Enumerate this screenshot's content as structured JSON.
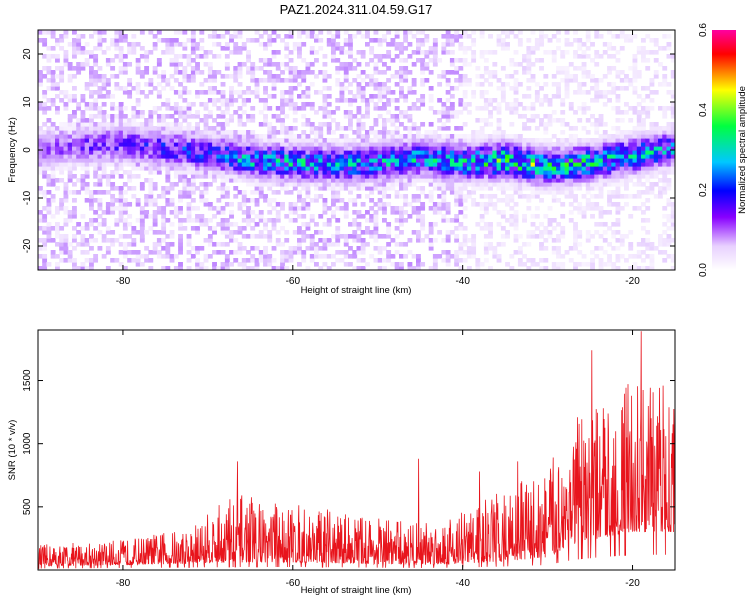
{
  "page_title": "PAZ1.2024.311.04.59.G17",
  "chart_data": [
    {
      "type": "heatmap",
      "xlabel": "Height of straight line (km)",
      "ylabel": "Frequency (Hz)",
      "xlim": [
        -90,
        -15
      ],
      "ylim": [
        -25,
        25
      ],
      "x_ticks": [
        "-80",
        "-60",
        "-40",
        "-20"
      ],
      "y_ticks": [
        "20",
        "10",
        "0",
        "-10",
        "-20"
      ],
      "colorbar": {
        "label": "Normalized spectral amplitude",
        "range": [
          0,
          0.6
        ],
        "ticks": [
          "0.0",
          "0.2",
          "0.4",
          "0.6"
        ],
        "colors": [
          "#ffffff",
          "#8800ff",
          "#0000ff",
          "#00ccff",
          "#00ff00",
          "#ffff00",
          "#ff0000",
          "#ff00aa"
        ]
      },
      "ridge": [
        {
          "x": -90,
          "f": 0.0,
          "amp": 0.12
        },
        {
          "x": -85,
          "f": 1.0,
          "amp": 0.15
        },
        {
          "x": -80,
          "f": 1.5,
          "amp": 0.17
        },
        {
          "x": -75,
          "f": 0.5,
          "amp": 0.2
        },
        {
          "x": -70,
          "f": -0.5,
          "amp": 0.22
        },
        {
          "x": -65,
          "f": -2.0,
          "amp": 0.27
        },
        {
          "x": -60,
          "f": -2.5,
          "amp": 0.28
        },
        {
          "x": -55,
          "f": -3.0,
          "amp": 0.26
        },
        {
          "x": -50,
          "f": -2.5,
          "amp": 0.27
        },
        {
          "x": -45,
          "f": -1.5,
          "amp": 0.28
        },
        {
          "x": -40,
          "f": -2.5,
          "amp": 0.3
        },
        {
          "x": -35,
          "f": -2.0,
          "amp": 0.34
        },
        {
          "x": -30,
          "f": -3.5,
          "amp": 0.33
        },
        {
          "x": -25,
          "f": -2.5,
          "amp": 0.3
        },
        {
          "x": -20,
          "f": -1.0,
          "amp": 0.28
        },
        {
          "x": -15,
          "f": 0.5,
          "amp": 0.25
        }
      ]
    },
    {
      "type": "line",
      "xlabel": "Height of straight line (km)",
      "ylabel": "SNR (10 * v/v)",
      "xlim": [
        -90,
        -15
      ],
      "ylim": [
        0,
        1900
      ],
      "x_ticks": [
        "-80",
        "-60",
        "-40",
        "-20"
      ],
      "y_ticks": [
        "500",
        "1000",
        "1500"
      ],
      "color": "#e8141c",
      "envelope": [
        {
          "x": -90,
          "low": 30,
          "high": 200
        },
        {
          "x": -80,
          "low": 40,
          "high": 240
        },
        {
          "x": -72,
          "low": 50,
          "high": 340
        },
        {
          "x": -67,
          "low": 60,
          "high": 620
        },
        {
          "x": -60,
          "low": 60,
          "high": 520
        },
        {
          "x": -52,
          "low": 50,
          "high": 440
        },
        {
          "x": -45,
          "low": 40,
          "high": 380
        },
        {
          "x": -40,
          "low": 50,
          "high": 480
        },
        {
          "x": -35,
          "low": 70,
          "high": 640
        },
        {
          "x": -30,
          "low": 100,
          "high": 820
        },
        {
          "x": -27,
          "low": 200,
          "high": 1150
        },
        {
          "x": -24,
          "low": 250,
          "high": 1300
        },
        {
          "x": -20,
          "low": 300,
          "high": 1500
        },
        {
          "x": -15,
          "low": 300,
          "high": 1500
        }
      ],
      "spikes": [
        {
          "x": -66.5,
          "y": 860
        },
        {
          "x": -45.2,
          "y": 880
        },
        {
          "x": -24.8,
          "y": 1740
        },
        {
          "x": -19.0,
          "y": 1890
        },
        {
          "x": -16.4,
          "y": 1460
        },
        {
          "x": -26.5,
          "y": 1210
        },
        {
          "x": -33.5,
          "y": 860
        },
        {
          "x": -38.0,
          "y": 780
        }
      ]
    }
  ]
}
